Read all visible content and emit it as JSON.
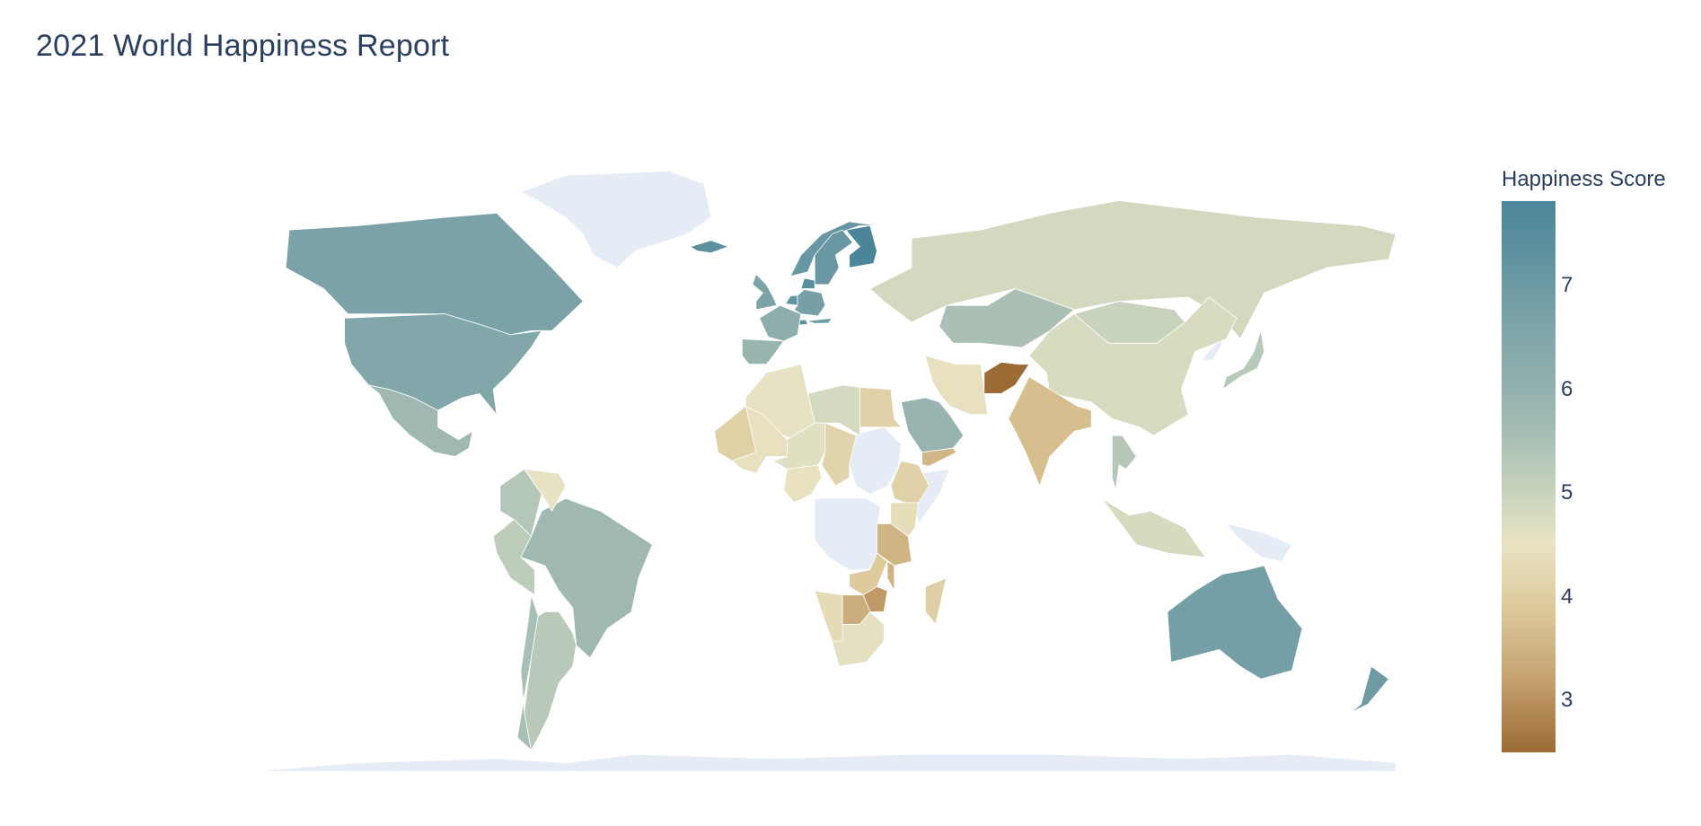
{
  "title": "2021 World Happiness Report",
  "colorbar": {
    "title": "Happiness Score",
    "ticks": [
      "7",
      "6",
      "5",
      "4",
      "3"
    ],
    "range": [
      2.52,
      7.84
    ],
    "colors": [
      "#9c6b35",
      "#c6a472",
      "#dcc99b",
      "#e9e3c3",
      "#cfd8bf",
      "#9fb9b2",
      "#7ba3a8",
      "#4a8599"
    ]
  },
  "map": {
    "projection": "equirectangular",
    "no_data_color": "#e5ecf6",
    "border_color": "#ffffff"
  },
  "chart_data": {
    "type": "choropleth",
    "title": "2021 World Happiness Report",
    "colorbar_title": "Happiness Score",
    "zrange": [
      2.52,
      7.84
    ],
    "countries": [
      {
        "name": "Finland",
        "value": 7.84
      },
      {
        "name": "Denmark",
        "value": 7.62
      },
      {
        "name": "Switzerland",
        "value": 7.57
      },
      {
        "name": "Iceland",
        "value": 7.55
      },
      {
        "name": "Netherlands",
        "value": 7.46
      },
      {
        "name": "Norway",
        "value": 7.39
      },
      {
        "name": "Sweden",
        "value": 7.36
      },
      {
        "name": "New Zealand",
        "value": 7.28
      },
      {
        "name": "Austria",
        "value": 7.27
      },
      {
        "name": "Australia",
        "value": 7.18
      },
      {
        "name": "Canada",
        "value": 7.1
      },
      {
        "name": "Germany",
        "value": 7.16
      },
      {
        "name": "United Kingdom",
        "value": 7.06
      },
      {
        "name": "United States",
        "value": 6.95
      },
      {
        "name": "France",
        "value": 6.69
      },
      {
        "name": "Spain",
        "value": 6.49
      },
      {
        "name": "Saudi Arabia",
        "value": 6.49
      },
      {
        "name": "Brazil",
        "value": 6.33
      },
      {
        "name": "Mexico",
        "value": 6.32
      },
      {
        "name": "Kazakhstan",
        "value": 6.15
      },
      {
        "name": "Chile",
        "value": 6.17
      },
      {
        "name": "Argentina",
        "value": 5.93
      },
      {
        "name": "Colombia",
        "value": 6.01
      },
      {
        "name": "Thailand",
        "value": 5.98
      },
      {
        "name": "Peru",
        "value": 5.84
      },
      {
        "name": "Japan",
        "value": 5.94
      },
      {
        "name": "Russia",
        "value": 5.48
      },
      {
        "name": "Mongolia",
        "value": 5.68
      },
      {
        "name": "China",
        "value": 5.34
      },
      {
        "name": "Indonesia",
        "value": 5.35
      },
      {
        "name": "Algeria",
        "value": 4.89
      },
      {
        "name": "Libya",
        "value": 5.41
      },
      {
        "name": "Venezuela",
        "value": 4.89
      },
      {
        "name": "Iran",
        "value": 4.72
      },
      {
        "name": "Nigeria",
        "value": 4.76
      },
      {
        "name": "South Africa",
        "value": 4.96
      },
      {
        "name": "Mali",
        "value": 4.72
      },
      {
        "name": "Namibia",
        "value": 4.57
      },
      {
        "name": "Niger",
        "value": 5.07
      },
      {
        "name": "Chad",
        "value": 4.36
      },
      {
        "name": "Mauritania",
        "value": 4.23
      },
      {
        "name": "Ethiopia",
        "value": 4.28
      },
      {
        "name": "Egypt",
        "value": 4.28
      },
      {
        "name": "Kenya",
        "value": 4.61
      },
      {
        "name": "India",
        "value": 3.82
      },
      {
        "name": "Madagascar",
        "value": 4.21
      },
      {
        "name": "Tanzania",
        "value": 3.62
      },
      {
        "name": "Zambia",
        "value": 4.07
      },
      {
        "name": "Malawi",
        "value": 3.6
      },
      {
        "name": "Botswana",
        "value": 3.47
      },
      {
        "name": "Zimbabwe",
        "value": 3.15
      },
      {
        "name": "Yemen",
        "value": 3.66
      },
      {
        "name": "Afghanistan",
        "value": 2.52
      }
    ]
  }
}
